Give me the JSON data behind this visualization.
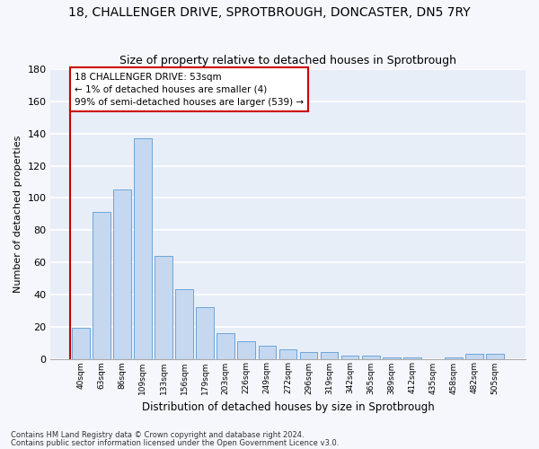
{
  "title_line1": "18, CHALLENGER DRIVE, SPROTBROUGH, DONCASTER, DN5 7RY",
  "title_line2": "Size of property relative to detached houses in Sprotbrough",
  "xlabel": "Distribution of detached houses by size in Sprotbrough",
  "ylabel": "Number of detached properties",
  "categories": [
    "40sqm",
    "63sqm",
    "86sqm",
    "109sqm",
    "133sqm",
    "156sqm",
    "179sqm",
    "203sqm",
    "226sqm",
    "249sqm",
    "272sqm",
    "296sqm",
    "319sqm",
    "342sqm",
    "365sqm",
    "389sqm",
    "412sqm",
    "435sqm",
    "458sqm",
    "482sqm",
    "505sqm"
  ],
  "values": [
    19,
    91,
    105,
    137,
    64,
    43,
    32,
    16,
    11,
    8,
    6,
    4,
    4,
    2,
    2,
    1,
    1,
    0,
    1,
    3,
    3
  ],
  "bar_color": "#c5d8f0",
  "bar_edge_color": "#5b9bd5",
  "annotation_text_line1": "18 CHALLENGER DRIVE: 53sqm",
  "annotation_text_line2": "← 1% of detached houses are smaller (4)",
  "annotation_text_line3": "99% of semi-detached houses are larger (539) →",
  "annotation_box_color": "#ffffff",
  "annotation_box_edge": "#cc0000",
  "vline_color": "#cc0000",
  "ylim": [
    0,
    180
  ],
  "yticks": [
    0,
    20,
    40,
    60,
    80,
    100,
    120,
    140,
    160,
    180
  ],
  "footer_line1": "Contains HM Land Registry data © Crown copyright and database right 2024.",
  "footer_line2": "Contains public sector information licensed under the Open Government Licence v3.0.",
  "plot_bg_color": "#e8eef8",
  "fig_bg_color": "#f5f7fc",
  "grid_color": "#ffffff",
  "spine_color": "#aaaaaa"
}
